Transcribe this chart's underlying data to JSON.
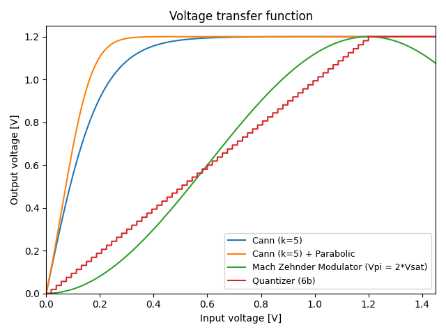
{
  "title": "Voltage transfer function",
  "xlabel": "Input voltage [V]",
  "ylabel": "Output voltage [V]",
  "xlim": [
    0,
    1.45
  ],
  "ylim": [
    0,
    1.25
  ],
  "vsat": 1.2,
  "k_cann": 5,
  "n_bits": 6,
  "n_points": 5000,
  "legend_labels": [
    "Cann (k=5)",
    "Cann (k=5) + Parabolic",
    "Mach Zehnder Modulator (Vpi = 2*Vsat)",
    "Quantizer (6b)"
  ],
  "legend_loc": "lower right",
  "colors": {
    "cann": "#1f77b4",
    "cann_para": "#ff7f0e",
    "mzm": "#2ca02c",
    "quant": "#d62728"
  },
  "figsize": [
    6.4,
    4.8
  ],
  "dpi": 100
}
